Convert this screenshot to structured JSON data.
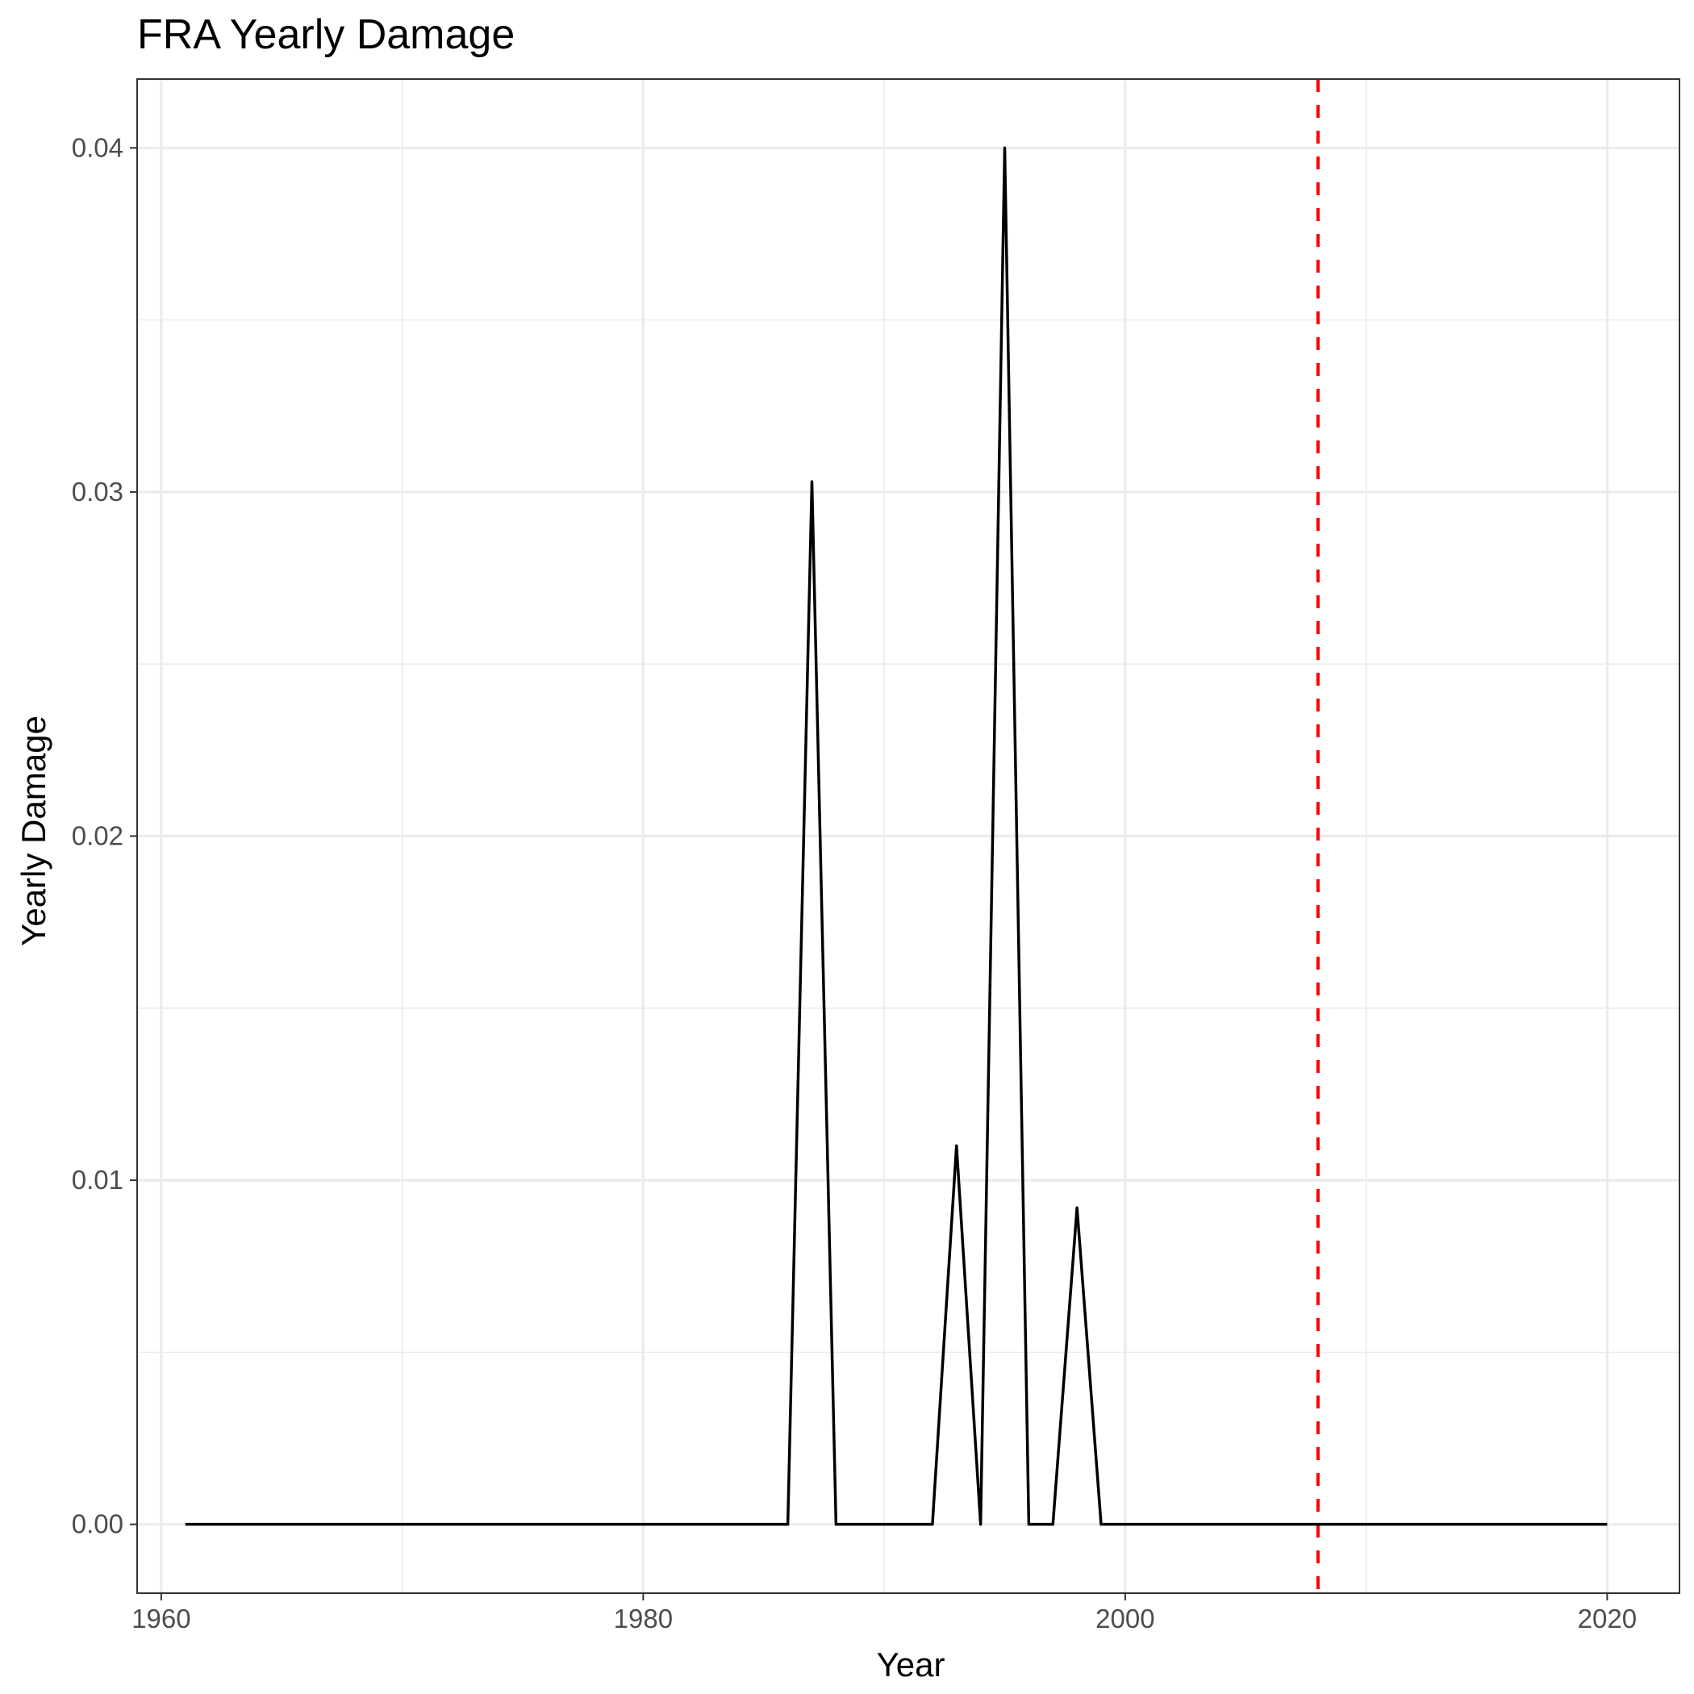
{
  "chart_data": {
    "type": "line",
    "title": "FRA Yearly Damage",
    "xlabel": "Year",
    "ylabel": "Yearly Damage",
    "xlim": [
      1959,
      2023
    ],
    "ylim": [
      -0.002,
      0.042
    ],
    "x_ticks": [
      1960,
      1980,
      2000,
      2020
    ],
    "x_tick_labels": [
      "1960",
      "1980",
      "2000",
      "2020"
    ],
    "x_minor_ticks": [
      1970,
      1990,
      2010
    ],
    "y_ticks": [
      0.0,
      0.01,
      0.02,
      0.03,
      0.04
    ],
    "y_tick_labels": [
      "0.00",
      "0.01",
      "0.02",
      "0.03",
      "0.04"
    ],
    "y_minor_ticks": [
      0.005,
      0.015,
      0.025,
      0.035
    ],
    "grid": true,
    "series": [
      {
        "color": "#000000",
        "x": [
          1961,
          1962,
          1963,
          1964,
          1965,
          1966,
          1967,
          1968,
          1969,
          1970,
          1971,
          1972,
          1973,
          1974,
          1975,
          1976,
          1977,
          1978,
          1979,
          1980,
          1981,
          1982,
          1983,
          1984,
          1985,
          1986,
          1987,
          1988,
          1989,
          1990,
          1991,
          1992,
          1993,
          1994,
          1995,
          1996,
          1997,
          1998,
          1999,
          2000,
          2001,
          2002,
          2003,
          2004,
          2005,
          2006,
          2007,
          2008,
          2009,
          2010,
          2011,
          2012,
          2013,
          2014,
          2015,
          2016,
          2017,
          2018,
          2019,
          2020
        ],
        "values": [
          0,
          0,
          0,
          0,
          0,
          0,
          0,
          0,
          0,
          0,
          0,
          0,
          0,
          0,
          0,
          0,
          0,
          0,
          0,
          0,
          0,
          0,
          0,
          0,
          0,
          0,
          0.0303,
          0,
          0,
          0,
          0,
          0,
          0.011,
          0,
          0.04,
          0,
          0,
          0.0092,
          0,
          0,
          0,
          0,
          0,
          0,
          0,
          0,
          0,
          0,
          0,
          0,
          0,
          0,
          0,
          0,
          0,
          0,
          0,
          0,
          0,
          0
        ]
      }
    ],
    "reference_line": {
      "orientation": "vertical",
      "x": 2008,
      "color": "#ff0000",
      "style": "dashed"
    }
  }
}
